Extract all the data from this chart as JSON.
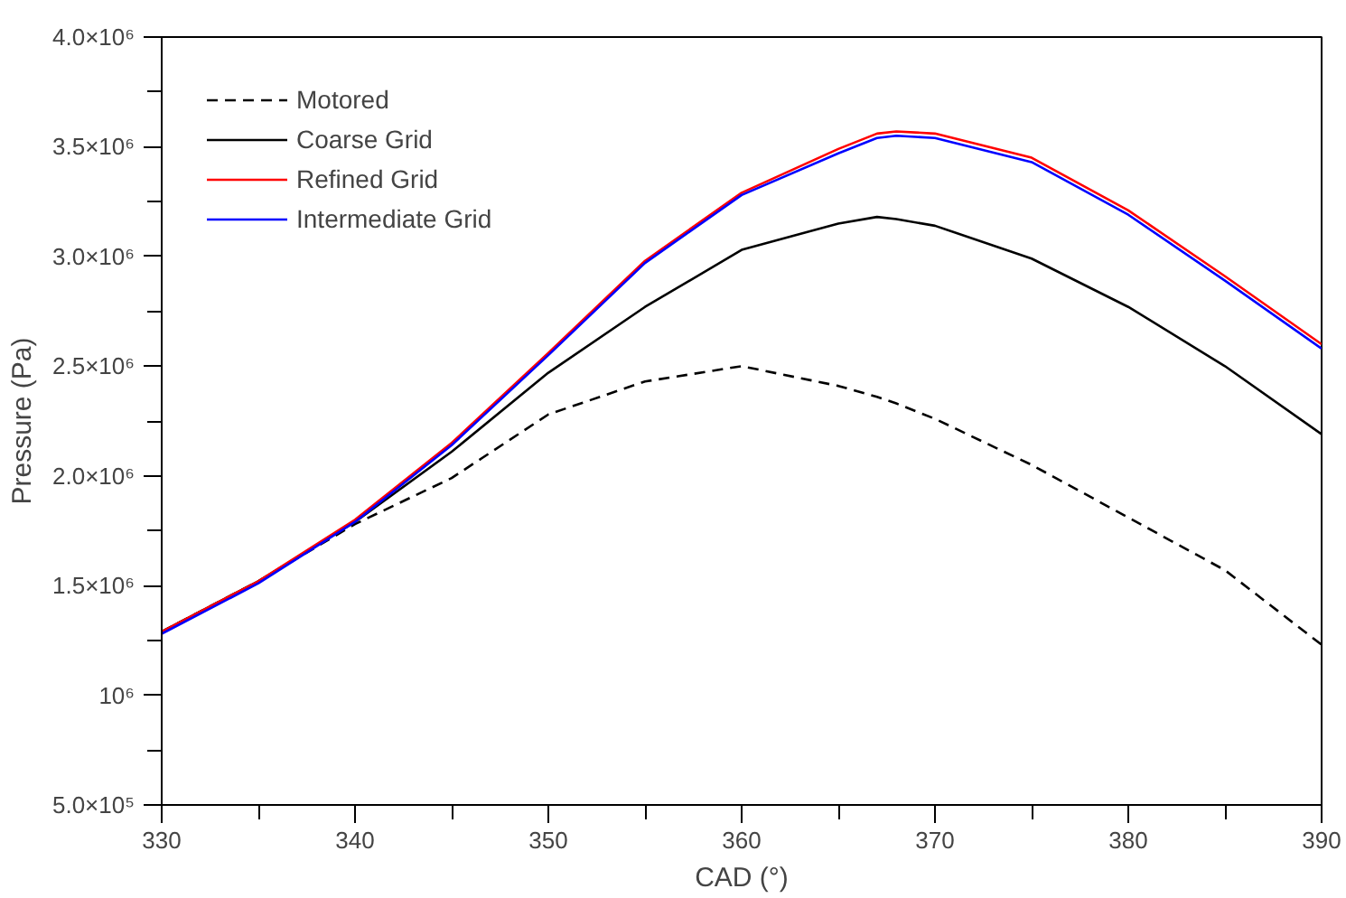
{
  "chart_data": {
    "type": "line",
    "xlabel": "CAD (°)",
    "ylabel": "Pressure (Pa)",
    "x": [
      330,
      335,
      340,
      345,
      350,
      355,
      360,
      365,
      367,
      368,
      370,
      375,
      380,
      385,
      390
    ],
    "series": [
      {
        "name": "Motored",
        "color": "#000000",
        "line_style": "dashed",
        "values": [
          1290000,
          1520000,
          1780000,
          1990000,
          2280000,
          2430000,
          2500000,
          2410000,
          2360000,
          2330000,
          2260000,
          2050000,
          1810000,
          1570000,
          1230000
        ]
      },
      {
        "name": "Coarse Grid",
        "color": "#000000",
        "line_style": "solid",
        "values": [
          1290000,
          1520000,
          1790000,
          2110000,
          2470000,
          2770000,
          3030000,
          3150000,
          3180000,
          3170000,
          3140000,
          2990000,
          2770000,
          2500000,
          2190000
        ]
      },
      {
        "name": "Refined Grid",
        "color": "#ff0000",
        "line_style": "solid",
        "values": [
          1290000,
          1520000,
          1800000,
          2150000,
          2560000,
          2980000,
          3290000,
          3490000,
          3560000,
          3570000,
          3560000,
          3450000,
          3210000,
          2910000,
          2600000
        ]
      },
      {
        "name": "Intermediate Grid",
        "color": "#0000ff",
        "line_style": "solid",
        "values": [
          1280000,
          1510000,
          1790000,
          2140000,
          2550000,
          2970000,
          3280000,
          3470000,
          3540000,
          3550000,
          3540000,
          3430000,
          3190000,
          2890000,
          2580000
        ]
      }
    ],
    "xlim": [
      330,
      390
    ],
    "xticks": [
      330,
      340,
      350,
      360,
      370,
      380,
      390
    ],
    "ylim": [
      500000,
      4000000
    ],
    "yticks": [
      {
        "value": 500000,
        "label": "5.0×10⁵"
      },
      {
        "value": 1000000,
        "label": "10⁶"
      },
      {
        "value": 1500000,
        "label": "1.5×10⁶"
      },
      {
        "value": 2000000,
        "label": "2.0×10⁶"
      },
      {
        "value": 2500000,
        "label": "2.5×10⁶"
      },
      {
        "value": 3000000,
        "label": "3.0×10⁶"
      },
      {
        "value": 3500000,
        "label": "3.5×10⁶"
      },
      {
        "value": 4000000,
        "label": "4.0×10⁶"
      }
    ],
    "grid": false,
    "legend": "top left",
    "marker": "none"
  }
}
